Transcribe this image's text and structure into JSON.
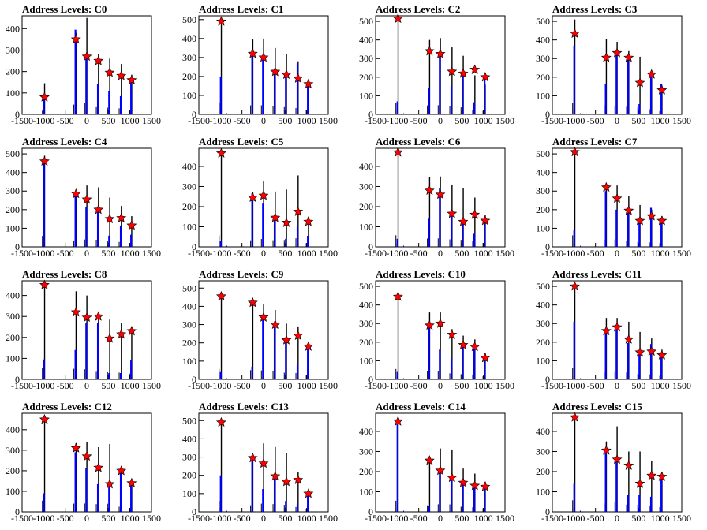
{
  "figure": {
    "colors": {
      "black_bars": "#000000",
      "blue_bars": "#0000ff",
      "markers": "#ff0000",
      "marker_outline": "#000000",
      "frame": "#000000"
    }
  },
  "chart_data": [
    {
      "type": "bar",
      "title": "Address Levels: C0",
      "xlim": [
        -1500,
        1500
      ],
      "ylim": [
        0,
        460
      ],
      "xticks": [
        -1500,
        -1000,
        -500,
        0,
        500,
        1000,
        1500
      ],
      "yticks": [
        0,
        100,
        200,
        300,
        400
      ],
      "peaks_x": [
        -980,
        -250,
        0,
        270,
        530,
        800,
        1040
      ],
      "marker_y": [
        80,
        350,
        270,
        250,
        195,
        180,
        160
      ],
      "black_heights": [
        145,
        380,
        450,
        280,
        260,
        235,
        185
      ],
      "blue_heights": [
        70,
        395,
        270,
        140,
        110,
        85,
        165
      ]
    },
    {
      "type": "bar",
      "title": "Address Levels: C1",
      "xlim": [
        -1500,
        1500
      ],
      "ylim": [
        0,
        520
      ],
      "xticks": [
        -1500,
        -1000,
        -500,
        0,
        500,
        1000,
        1500
      ],
      "yticks": [
        0,
        100,
        200,
        300,
        400,
        500
      ],
      "peaks_x": [
        -980,
        -250,
        0,
        270,
        530,
        800,
        1040
      ],
      "marker_y": [
        490,
        320,
        300,
        225,
        210,
        190,
        160
      ],
      "black_heights": [
        500,
        395,
        400,
        350,
        320,
        280,
        185
      ],
      "blue_heights": [
        200,
        340,
        300,
        220,
        210,
        270,
        165
      ]
    },
    {
      "type": "bar",
      "title": "Address Levels: C2",
      "xlim": [
        -1500,
        1500
      ],
      "ylim": [
        0,
        530
      ],
      "xticks": [
        -1500,
        -1000,
        -500,
        0,
        500,
        1000,
        1500
      ],
      "yticks": [
        0,
        100,
        200,
        300,
        400,
        500
      ],
      "peaks_x": [
        -980,
        -250,
        0,
        270,
        530,
        800,
        1040
      ],
      "marker_y": [
        515,
        340,
        325,
        230,
        220,
        240,
        200
      ],
      "black_heights": [
        525,
        400,
        410,
        360,
        315,
        210,
        160
      ],
      "blue_heights": [
        70,
        140,
        310,
        155,
        230,
        65,
        200
      ]
    },
    {
      "type": "bar",
      "title": "Address Levels: C3",
      "xlim": [
        -1500,
        1500
      ],
      "ylim": [
        0,
        530
      ],
      "xticks": [
        -1500,
        -1000,
        -500,
        0,
        500,
        1000,
        1500
      ],
      "yticks": [
        0,
        100,
        200,
        300,
        400,
        500
      ],
      "peaks_x": [
        -980,
        -250,
        0,
        270,
        530,
        800,
        1040
      ],
      "marker_y": [
        435,
        305,
        330,
        305,
        170,
        215,
        130
      ],
      "black_heights": [
        510,
        405,
        390,
        340,
        310,
        230,
        150
      ],
      "blue_heights": [
        370,
        165,
        325,
        295,
        55,
        200,
        165
      ]
    },
    {
      "type": "bar",
      "title": "Address Levels: C4",
      "xlim": [
        -1500,
        1500
      ],
      "ylim": [
        0,
        530
      ],
      "xticks": [
        -1500,
        -1000,
        -500,
        0,
        500,
        1000,
        1500
      ],
      "yticks": [
        0,
        100,
        200,
        300,
        400,
        500
      ],
      "peaks_x": [
        -980,
        -250,
        0,
        270,
        530,
        800,
        1040
      ],
      "marker_y": [
        460,
        285,
        255,
        200,
        150,
        155,
        115
      ],
      "black_heights": [
        490,
        285,
        330,
        320,
        265,
        220,
        165
      ],
      "blue_heights": [
        475,
        290,
        215,
        185,
        60,
        115,
        65
      ]
    },
    {
      "type": "bar",
      "title": "Address Levels: C5",
      "xlim": [
        -1500,
        1500
      ],
      "ylim": [
        0,
        490
      ],
      "xticks": [
        -1500,
        -1000,
        -500,
        0,
        500,
        1000,
        1500
      ],
      "yticks": [
        0,
        100,
        200,
        300,
        400
      ],
      "peaks_x": [
        -980,
        -250,
        0,
        270,
        530,
        800,
        1040
      ],
      "marker_y": [
        465,
        245,
        255,
        145,
        120,
        175,
        125
      ],
      "black_heights": [
        470,
        270,
        325,
        275,
        285,
        355,
        150
      ],
      "blue_heights": [
        30,
        265,
        215,
        145,
        40,
        105,
        55
      ]
    },
    {
      "type": "bar",
      "title": "Address Levels: C6",
      "xlim": [
        -1500,
        1500
      ],
      "ylim": [
        0,
        490
      ],
      "xticks": [
        -1500,
        -1000,
        -500,
        0,
        500,
        1000,
        1500
      ],
      "yticks": [
        0,
        100,
        200,
        300,
        400
      ],
      "peaks_x": [
        -980,
        -250,
        0,
        270,
        530,
        800,
        1040
      ],
      "marker_y": [
        470,
        280,
        260,
        165,
        125,
        160,
        130
      ],
      "black_heights": [
        480,
        345,
        350,
        310,
        290,
        245,
        160
      ],
      "blue_heights": [
        40,
        140,
        290,
        175,
        115,
        65,
        115
      ]
    },
    {
      "type": "bar",
      "title": "Address Levels: C7",
      "xlim": [
        -1500,
        1500
      ],
      "ylim": [
        0,
        530
      ],
      "xticks": [
        -1500,
        -1000,
        -500,
        0,
        500,
        1000,
        1500
      ],
      "yticks": [
        0,
        100,
        200,
        300,
        400,
        500
      ],
      "peaks_x": [
        -980,
        -250,
        0,
        270,
        530,
        800,
        1040
      ],
      "marker_y": [
        510,
        320,
        260,
        195,
        140,
        165,
        140
      ],
      "black_heights": [
        515,
        325,
        330,
        275,
        225,
        200,
        165
      ],
      "blue_heights": [
        90,
        300,
        200,
        185,
        140,
        210,
        140
      ]
    },
    {
      "type": "bar",
      "title": "Address Levels: C8",
      "xlim": [
        -1500,
        1500
      ],
      "ylim": [
        0,
        470
      ],
      "xticks": [
        -1500,
        -1000,
        -500,
        0,
        500,
        1000,
        1500
      ],
      "yticks": [
        0,
        100,
        200,
        300,
        400
      ],
      "peaks_x": [
        -980,
        -250,
        0,
        270,
        530,
        800,
        1040
      ],
      "marker_y": [
        450,
        320,
        295,
        300,
        195,
        215,
        230
      ],
      "black_heights": [
        455,
        420,
        400,
        300,
        285,
        270,
        230
      ],
      "blue_heights": [
        95,
        140,
        270,
        270,
        30,
        30,
        90
      ]
    },
    {
      "type": "bar",
      "title": "Address Levels: C9",
      "xlim": [
        -1500,
        1500
      ],
      "ylim": [
        0,
        540
      ],
      "xticks": [
        -1500,
        -1000,
        -500,
        0,
        500,
        1000,
        1500
      ],
      "yticks": [
        0,
        100,
        200,
        300,
        400,
        500
      ],
      "peaks_x": [
        -980,
        -250,
        0,
        270,
        530,
        800,
        1040
      ],
      "marker_y": [
        455,
        420,
        340,
        300,
        215,
        240,
        180
      ],
      "black_heights": [
        470,
        420,
        410,
        380,
        305,
        290,
        200
      ],
      "blue_heights": [
        40,
        70,
        335,
        290,
        200,
        80,
        180
      ]
    },
    {
      "type": "bar",
      "title": "Address Levels: C10",
      "xlim": [
        -1500,
        1500
      ],
      "ylim": [
        0,
        530
      ],
      "xticks": [
        -1500,
        -1000,
        -500,
        0,
        500,
        1000,
        1500
      ],
      "yticks": [
        0,
        100,
        200,
        300,
        400,
        500
      ],
      "peaks_x": [
        -980,
        -250,
        0,
        270,
        530,
        800,
        1040
      ],
      "marker_y": [
        445,
        290,
        300,
        240,
        185,
        175,
        115
      ],
      "black_heights": [
        465,
        360,
        360,
        270,
        235,
        215,
        140
      ],
      "blue_heights": [
        40,
        300,
        160,
        110,
        185,
        170,
        110
      ]
    },
    {
      "type": "bar",
      "title": "Address Levels: C11",
      "xlim": [
        -1500,
        1500
      ],
      "ylim": [
        0,
        530
      ],
      "xticks": [
        -1500,
        -1000,
        -500,
        0,
        500,
        1000,
        1500
      ],
      "yticks": [
        0,
        100,
        200,
        300,
        400,
        500
      ],
      "peaks_x": [
        -980,
        -250,
        0,
        270,
        530,
        800,
        1040
      ],
      "marker_y": [
        500,
        260,
        280,
        215,
        145,
        150,
        130
      ],
      "black_heights": [
        510,
        330,
        330,
        310,
        255,
        220,
        160
      ],
      "blue_heights": [
        310,
        270,
        280,
        195,
        140,
        190,
        125
      ]
    },
    {
      "type": "bar",
      "title": "Address Levels: C12",
      "xlim": [
        -1500,
        1500
      ],
      "ylim": [
        0,
        480
      ],
      "xticks": [
        -1500,
        -1000,
        -500,
        0,
        500,
        1000,
        1500
      ],
      "yticks": [
        0,
        100,
        200,
        300,
        400
      ],
      "peaks_x": [
        -980,
        -250,
        0,
        270,
        530,
        800,
        1040
      ],
      "marker_y": [
        450,
        310,
        270,
        215,
        135,
        200,
        140
      ],
      "black_heights": [
        455,
        335,
        340,
        315,
        330,
        210,
        160
      ],
      "blue_heights": [
        90,
        290,
        215,
        135,
        140,
        190,
        145
      ]
    },
    {
      "type": "bar",
      "title": "Address Levels: C13",
      "xlim": [
        -1500,
        1500
      ],
      "ylim": [
        0,
        540
      ],
      "xticks": [
        -1500,
        -1000,
        -500,
        0,
        500,
        1000,
        1500
      ],
      "yticks": [
        0,
        100,
        200,
        300,
        400,
        500
      ],
      "peaks_x": [
        -980,
        -250,
        0,
        270,
        530,
        800,
        1040
      ],
      "marker_y": [
        490,
        295,
        265,
        195,
        165,
        175,
        100
      ],
      "black_heights": [
        500,
        300,
        375,
        355,
        320,
        220,
        120
      ],
      "blue_heights": [
        200,
        290,
        125,
        190,
        60,
        45,
        95
      ]
    },
    {
      "type": "bar",
      "title": "Address Levels: C14",
      "xlim": [
        -1500,
        1500
      ],
      "ylim": [
        0,
        490
      ],
      "xticks": [
        -1500,
        -1000,
        -500,
        0,
        500,
        1000,
        1500
      ],
      "yticks": [
        0,
        100,
        200,
        300,
        400
      ],
      "peaks_x": [
        -980,
        -250,
        0,
        270,
        530,
        800,
        1040
      ],
      "marker_y": [
        450,
        255,
        205,
        170,
        145,
        130,
        125
      ],
      "black_heights": [
        460,
        270,
        315,
        310,
        215,
        190,
        150
      ],
      "blue_heights": [
        435,
        30,
        190,
        160,
        140,
        130,
        140
      ]
    },
    {
      "type": "bar",
      "title": "Address Levels: C15",
      "xlim": [
        -1500,
        1500
      ],
      "ylim": [
        0,
        490
      ],
      "xticks": [
        -1500,
        -1000,
        -500,
        0,
        500,
        1000,
        1500
      ],
      "yticks": [
        0,
        100,
        200,
        300,
        400
      ],
      "peaks_x": [
        -980,
        -250,
        0,
        270,
        530,
        800,
        1040
      ],
      "marker_y": [
        470,
        305,
        260,
        230,
        140,
        180,
        175
      ],
      "black_heights": [
        480,
        350,
        425,
        300,
        300,
        255,
        200
      ],
      "blue_heights": [
        140,
        300,
        245,
        85,
        85,
        75,
        180
      ]
    }
  ]
}
